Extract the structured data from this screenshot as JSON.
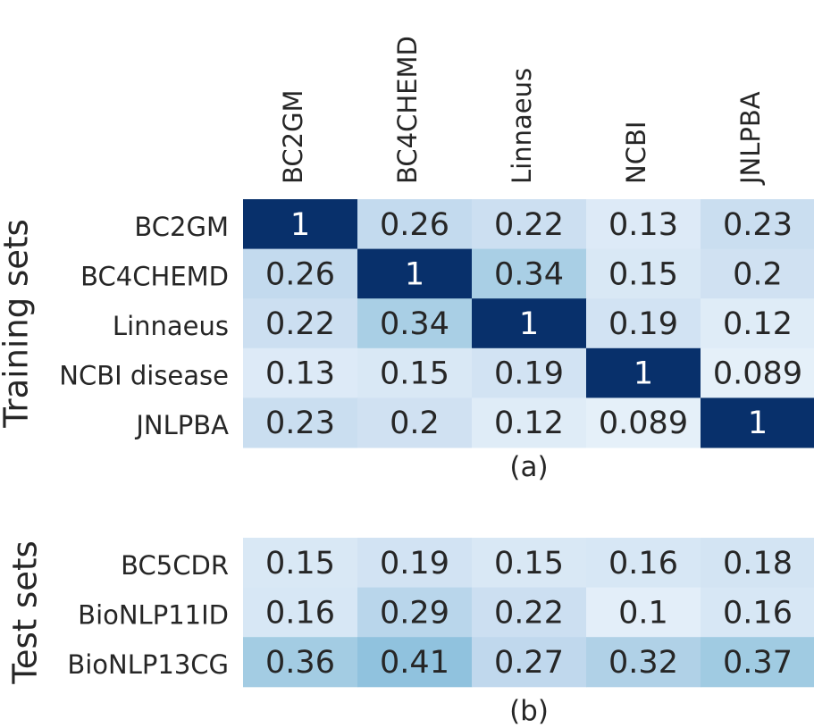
{
  "chart_data": [
    {
      "type": "heatmap",
      "panel": "(a)",
      "ylabel": "Training sets",
      "columns": [
        "BC2GM",
        "BC4CHEMD",
        "Linnaeus",
        "NCBI",
        "JNLPBA"
      ],
      "rows": [
        "BC2GM",
        "BC4CHEMD",
        "Linnaeus",
        "NCBI disease",
        "JNLPBA"
      ],
      "values": [
        [
          1,
          0.26,
          0.22,
          0.13,
          0.23
        ],
        [
          0.26,
          1,
          0.34,
          0.15,
          0.2
        ],
        [
          0.22,
          0.34,
          1,
          0.19,
          0.12
        ],
        [
          0.13,
          0.15,
          0.19,
          1,
          0.089
        ],
        [
          0.23,
          0.2,
          0.12,
          0.089,
          1
        ]
      ],
      "colormap": "Blues",
      "vmin": 0,
      "vmax": 1
    },
    {
      "type": "heatmap",
      "panel": "(b)",
      "ylabel": "Test sets",
      "columns": [
        "BC2GM",
        "BC4CHEMD",
        "Linnaeus",
        "NCBI",
        "JNLPBA"
      ],
      "rows": [
        "BC5CDR",
        "BioNLP11ID",
        "BioNLP13CG"
      ],
      "values": [
        [
          0.15,
          0.19,
          0.15,
          0.16,
          0.18
        ],
        [
          0.16,
          0.29,
          0.22,
          0.1,
          0.16
        ],
        [
          0.36,
          0.41,
          0.27,
          0.32,
          0.37
        ]
      ],
      "colormap": "Blues",
      "vmin": 0,
      "vmax": 1
    }
  ],
  "colors": {
    "text_dark": "#262626",
    "text_light": "#ffffff",
    "blues_ramp": [
      "#f7fbff",
      "#deebf7",
      "#c6dbef",
      "#9ecae1",
      "#6baed6",
      "#4292c6",
      "#2171b5",
      "#08519c",
      "#08306b"
    ]
  }
}
